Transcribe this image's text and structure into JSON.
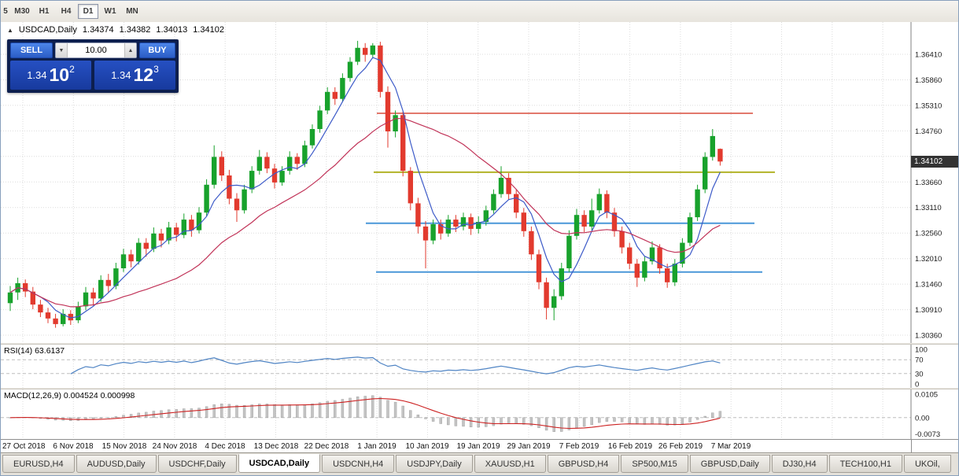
{
  "toolbar": {
    "timeframes": [
      {
        "label": "5",
        "active": false
      },
      {
        "label": "M30",
        "active": false
      },
      {
        "label": "H1",
        "active": false
      },
      {
        "label": "H4",
        "active": false
      },
      {
        "label": "D1",
        "active": true
      },
      {
        "label": "W1",
        "active": false
      },
      {
        "label": "MN",
        "active": false
      }
    ]
  },
  "header": {
    "arrow": "▲",
    "symbol": "USDCAD,Daily",
    "open": "1.34374",
    "high": "1.34382",
    "low": "1.34013",
    "close": "1.34102"
  },
  "trade_widget": {
    "sell_label": "SELL",
    "buy_label": "BUY",
    "volume": "10.00",
    "spinner_down": "▼",
    "spinner_up": "▲",
    "sell_price": {
      "base": "1.34",
      "big": "10",
      "sup": "2"
    },
    "buy_price": {
      "base": "1.34",
      "big": "12",
      "sup": "3"
    }
  },
  "price_axis": {
    "badge": "1.34102"
  },
  "chart_data": [
    {
      "type": "candlestick",
      "title": "USDCAD,Daily",
      "current_ohlc": {
        "open": 1.34374,
        "high": 1.34382,
        "low": 1.34013,
        "close": 1.34102
      },
      "current_price": 1.34102,
      "x_labels": [
        "27 Oct 2018",
        "6 Nov 2018",
        "15 Nov 2018",
        "24 Nov 2018",
        "4 Dec 2018",
        "13 Dec 2018",
        "22 Dec 2018",
        "1 Jan 2019",
        "10 Jan 2019",
        "19 Jan 2019",
        "29 Jan 2019",
        "7 Feb 2019",
        "16 Feb 2019",
        "26 Feb 2019",
        "7 Mar 2019"
      ],
      "y_axis_labels": [
        "1.36410",
        "1.35860",
        "1.35310",
        "1.34760",
        "1.33660",
        "1.33110",
        "1.32560",
        "1.32010",
        "1.31460",
        "1.30910",
        "1.30360"
      ],
      "y_grid": [
        1.3641,
        1.3586,
        1.3531,
        1.3476,
        1.3421,
        1.3366,
        1.3311,
        1.3256,
        1.3201,
        1.3146,
        1.3091,
        1.3036
      ],
      "y_range": [
        1.30191,
        1.37105
      ],
      "candle_colors": {
        "up": "#18a22c",
        "down": "#e23a2e"
      },
      "overlays": [
        {
          "name": "ma-fast",
          "type": "sma",
          "period": 5,
          "color": "#3c5ac8"
        },
        {
          "name": "ma-slow",
          "type": "sma",
          "period": 20,
          "color": "#c13358"
        }
      ],
      "hlines": [
        {
          "price": 1.3514,
          "color": "#d84b3c",
          "x_from": 478,
          "x_to": 956,
          "width": 1.4
        },
        {
          "price": 1.3387,
          "color": "#b2b328",
          "x_from": 474,
          "x_to": 984,
          "width": 2
        },
        {
          "price": 1.3277,
          "color": "#4a97d8",
          "x_from": 464,
          "x_to": 958,
          "width": 2
        },
        {
          "price": 1.3172,
          "color": "#4a97d8",
          "x_from": 477,
          "x_to": 968,
          "width": 2
        }
      ],
      "ohlc": [
        [
          1.3105,
          1.3142,
          1.3088,
          1.3128
        ],
        [
          1.3128,
          1.316,
          1.3112,
          1.3148
        ],
        [
          1.3148,
          1.3156,
          1.3118,
          1.313
        ],
        [
          1.313,
          1.314,
          1.3092,
          1.3102
        ],
        [
          1.3102,
          1.3112,
          1.3075,
          1.3085
        ],
        [
          1.3085,
          1.3095,
          1.3062,
          1.3072
        ],
        [
          1.3072,
          1.3082,
          1.3052,
          1.306
        ],
        [
          1.306,
          1.3092,
          1.3055,
          1.3082
        ],
        [
          1.3082,
          1.309,
          1.3058,
          1.3068
        ],
        [
          1.3068,
          1.3108,
          1.3062,
          1.3098
        ],
        [
          1.3098,
          1.314,
          1.309,
          1.3128
        ],
        [
          1.3128,
          1.3138,
          1.31,
          1.3115
        ],
        [
          1.3115,
          1.3165,
          1.3108,
          1.3155
        ],
        [
          1.3155,
          1.3168,
          1.3128,
          1.3142
        ],
        [
          1.3142,
          1.3192,
          1.3135,
          1.318
        ],
        [
          1.318,
          1.3222,
          1.3172,
          1.321
        ],
        [
          1.321,
          1.322,
          1.3182,
          1.3195
        ],
        [
          1.3195,
          1.3245,
          1.3188,
          1.3235
        ],
        [
          1.3235,
          1.3245,
          1.3205,
          1.3222
        ],
        [
          1.3222,
          1.3268,
          1.3215,
          1.3255
        ],
        [
          1.3255,
          1.3265,
          1.3225,
          1.324
        ],
        [
          1.324,
          1.328,
          1.3232,
          1.3268
        ],
        [
          1.3268,
          1.3278,
          1.3238,
          1.3252
        ],
        [
          1.3252,
          1.3298,
          1.3245,
          1.3285
        ],
        [
          1.3285,
          1.3295,
          1.3248,
          1.3262
        ],
        [
          1.3262,
          1.3312,
          1.3255,
          1.33
        ],
        [
          1.33,
          1.3372,
          1.3292,
          1.336
        ],
        [
          1.336,
          1.3445,
          1.3352,
          1.342
        ],
        [
          1.342,
          1.3432,
          1.3368,
          1.338
        ],
        [
          1.338,
          1.3392,
          1.3318,
          1.333
        ],
        [
          1.333,
          1.3342,
          1.328,
          1.3305
        ],
        [
          1.3305,
          1.336,
          1.3298,
          1.335
        ],
        [
          1.335,
          1.34,
          1.3342,
          1.339
        ],
        [
          1.339,
          1.3435,
          1.3382,
          1.342
        ],
        [
          1.342,
          1.343,
          1.3385,
          1.3395
        ],
        [
          1.3395,
          1.3405,
          1.3352,
          1.3365
        ],
        [
          1.3365,
          1.34,
          1.3358,
          1.339
        ],
        [
          1.339,
          1.3432,
          1.3382,
          1.342
        ],
        [
          1.342,
          1.3428,
          1.3392,
          1.3405
        ],
        [
          1.3405,
          1.3455,
          1.3398,
          1.3445
        ],
        [
          1.3445,
          1.349,
          1.3438,
          1.348
        ],
        [
          1.348,
          1.353,
          1.3472,
          1.352
        ],
        [
          1.352,
          1.357,
          1.3512,
          1.356
        ],
        [
          1.356,
          1.357,
          1.3532,
          1.3545
        ],
        [
          1.3545,
          1.36,
          1.3538,
          1.359
        ],
        [
          1.359,
          1.3635,
          1.3582,
          1.3625
        ],
        [
          1.3625,
          1.367,
          1.3618,
          1.3655
        ],
        [
          1.3655,
          1.3665,
          1.3625,
          1.364
        ],
        [
          1.364,
          1.3665,
          1.3632,
          1.366
        ],
        [
          1.366,
          1.3668,
          1.3548,
          1.356
        ],
        [
          1.356,
          1.3572,
          1.344,
          1.3475
        ],
        [
          1.3475,
          1.352,
          1.3462,
          1.351
        ],
        [
          1.351,
          1.3518,
          1.3378,
          1.339
        ],
        [
          1.339,
          1.3398,
          1.3305,
          1.332
        ],
        [
          1.332,
          1.3332,
          1.3255,
          1.327
        ],
        [
          1.327,
          1.3282,
          1.318,
          1.324
        ],
        [
          1.324,
          1.3285,
          1.3232,
          1.3275
        ],
        [
          1.3275,
          1.3285,
          1.3242,
          1.3255
        ],
        [
          1.3255,
          1.3295,
          1.3248,
          1.3285
        ],
        [
          1.3285,
          1.3295,
          1.3258,
          1.327
        ],
        [
          1.327,
          1.33,
          1.3262,
          1.329
        ],
        [
          1.329,
          1.3298,
          1.3252,
          1.3265
        ],
        [
          1.3265,
          1.3292,
          1.3255,
          1.328
        ],
        [
          1.328,
          1.3315,
          1.3272,
          1.3305
        ],
        [
          1.3305,
          1.335,
          1.3298,
          1.334
        ],
        [
          1.334,
          1.34,
          1.3332,
          1.3375
        ],
        [
          1.3375,
          1.3385,
          1.3328,
          1.334
        ],
        [
          1.334,
          1.335,
          1.3288,
          1.33
        ],
        [
          1.33,
          1.331,
          1.3248,
          1.326
        ],
        [
          1.326,
          1.327,
          1.3198,
          1.321
        ],
        [
          1.321,
          1.322,
          1.3135,
          1.315
        ],
        [
          1.315,
          1.316,
          1.307,
          1.3095
        ],
        [
          1.3095,
          1.3135,
          1.3068,
          1.312
        ],
        [
          1.312,
          1.3192,
          1.3112,
          1.318
        ],
        [
          1.318,
          1.3262,
          1.3172,
          1.325
        ],
        [
          1.325,
          1.3308,
          1.3242,
          1.3295
        ],
        [
          1.3295,
          1.3305,
          1.3258,
          1.327
        ],
        [
          1.327,
          1.333,
          1.3262,
          1.3305
        ],
        [
          1.3305,
          1.3352,
          1.3298,
          1.334
        ],
        [
          1.334,
          1.3348,
          1.3288,
          1.33
        ],
        [
          1.33,
          1.331,
          1.3248,
          1.326
        ],
        [
          1.326,
          1.327,
          1.3212,
          1.3225
        ],
        [
          1.3225,
          1.3235,
          1.3178,
          1.319
        ],
        [
          1.319,
          1.32,
          1.314,
          1.316
        ],
        [
          1.316,
          1.3205,
          1.3152,
          1.3195
        ],
        [
          1.3195,
          1.3238,
          1.3188,
          1.3225
        ],
        [
          1.3225,
          1.3232,
          1.3168,
          1.318
        ],
        [
          1.318,
          1.319,
          1.3138,
          1.315
        ],
        [
          1.315,
          1.32,
          1.3142,
          1.319
        ],
        [
          1.319,
          1.3245,
          1.3182,
          1.3235
        ],
        [
          1.3235,
          1.33,
          1.3228,
          1.329
        ],
        [
          1.329,
          1.336,
          1.3282,
          1.335
        ],
        [
          1.335,
          1.343,
          1.3342,
          1.342
        ],
        [
          1.342,
          1.348,
          1.3412,
          1.3465
        ],
        [
          1.34374,
          1.34382,
          1.34013,
          1.34102
        ]
      ]
    },
    {
      "type": "line",
      "name": "RSI",
      "params": {
        "period": 14
      },
      "last_value": 63.6137,
      "label": "RSI(14) 63.6137",
      "range": [
        0,
        100
      ],
      "levels": [
        70,
        30
      ],
      "axis_labels": [
        "100",
        "70",
        "30",
        "0"
      ],
      "color": "#4f84c4"
    },
    {
      "type": "macd",
      "name": "MACD",
      "params": {
        "fast": 12,
        "slow": 26,
        "signal": 9
      },
      "last_values": {
        "macd": 0.004524,
        "signal": 0.000998
      },
      "label": "MACD(12,26,9) 0.004524 0.000998",
      "range": [
        -0.0078,
        0.0108
      ],
      "axis_labels": [
        "0.0105",
        "0.00",
        "-0.0073"
      ],
      "hist_color": "#c4c4c4",
      "signal_color": "#cc2020"
    }
  ],
  "tabs": [
    {
      "label": "EURUSD,H4",
      "active": false
    },
    {
      "label": "AUDUSD,Daily",
      "active": false
    },
    {
      "label": "USDCHF,Daily",
      "active": false
    },
    {
      "label": "USDCAD,Daily",
      "active": true
    },
    {
      "label": "USDCNH,H4",
      "active": false
    },
    {
      "label": "USDJPY,Daily",
      "active": false
    },
    {
      "label": "XAUUSD,H1",
      "active": false
    },
    {
      "label": "GBPUSD,H4",
      "active": false
    },
    {
      "label": "SP500,M15",
      "active": false
    },
    {
      "label": "GBPUSD,Daily",
      "active": false
    },
    {
      "label": "DJ30,H4",
      "active": false
    },
    {
      "label": "TECH100,H1",
      "active": false
    },
    {
      "label": "UKOil,",
      "active": false
    }
  ]
}
